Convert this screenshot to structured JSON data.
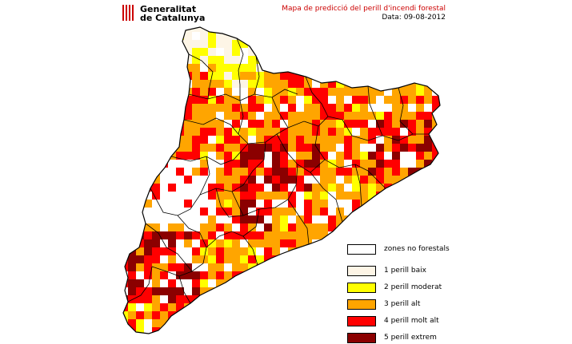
{
  "header": {
    "logo_line1": "Generalitat",
    "logo_line2": "de Catalunya",
    "title": "Mapa de predicció del perill d'incendi forestal",
    "date": "Data: 09-08-2012"
  },
  "legend": [
    {
      "label": "zones no forestals",
      "color": "#ffffff"
    },
    {
      "label": "1  perill baix",
      "color": "#fdf5e6"
    },
    {
      "label": "2  perill moderat",
      "color": "#ffff00"
    },
    {
      "label": "3  perill alt",
      "color": "#ffa500"
    },
    {
      "label": "4  perill molt alt",
      "color": "#ff0000"
    },
    {
      "label": "5  perill extrem",
      "color": "#8b0000"
    }
  ],
  "colors": {
    "boundary": "#000000",
    "title_red": "#cc0000"
  }
}
